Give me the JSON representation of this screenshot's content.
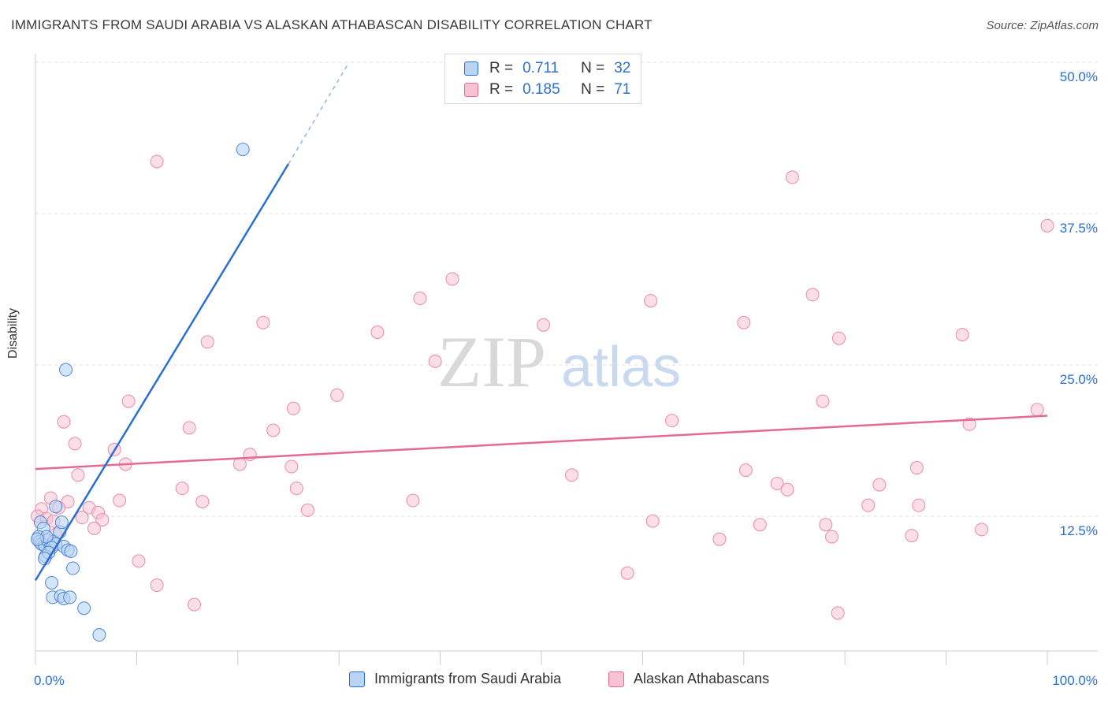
{
  "title": "IMMIGRANTS FROM SAUDI ARABIA VS ALASKAN ATHABASCAN DISABILITY CORRELATION CHART",
  "source": "Source: ZipAtlas.com",
  "watermark": {
    "zip": "ZIP",
    "atlas": "atlas"
  },
  "legend": {
    "r_label": "R =",
    "n_label": "N =",
    "rows": [
      {
        "r": "0.711",
        "n": "32"
      },
      {
        "r": "0.185",
        "n": "71"
      }
    ]
  },
  "bottom_legend": [
    "Immigrants from Saudi Arabia",
    "Alaskan Athabascans"
  ],
  "colors": {
    "blue": "#2b6fd0",
    "blue_fill": "#b9d3f3",
    "pink": "#e56a93",
    "pink_fill": "#f7c3d3",
    "grid": "#dddddd"
  },
  "chart_data": {
    "type": "scatter",
    "ylabel": "Disability",
    "xlim": [
      0,
      100
    ],
    "ylim": [
      0,
      50
    ],
    "x_tick_labels": [
      "0.0%",
      "100.0%"
    ],
    "y_ticks": [
      12.5,
      25.0,
      37.5,
      50.0
    ],
    "y_tick_labels": [
      "12.5%",
      "25.0%",
      "37.5%",
      "50.0%"
    ],
    "grid": true,
    "series": [
      {
        "name": "Immigrants from Saudi Arabia",
        "color": "#2b6fd0",
        "trend": {
          "x0": 0,
          "y0": 7.2,
          "x1": 25,
          "y1": 41.6,
          "dash_to_x": 31,
          "dash_to_y": 50
        },
        "points": [
          [
            20.5,
            42.8
          ],
          [
            3.0,
            24.6
          ],
          [
            0.5,
            12.0
          ],
          [
            0.8,
            11.5
          ],
          [
            0.3,
            10.8
          ],
          [
            0.4,
            10.4
          ],
          [
            0.6,
            10.2
          ],
          [
            0.9,
            10.1
          ],
          [
            1.2,
            10.5
          ],
          [
            1.5,
            10.0
          ],
          [
            1.8,
            10.4
          ],
          [
            2.0,
            10.2
          ],
          [
            2.4,
            11.2
          ],
          [
            2.6,
            12.0
          ],
          [
            1.1,
            10.8
          ],
          [
            1.6,
            9.9
          ],
          [
            2.8,
            10.0
          ],
          [
            3.2,
            9.7
          ],
          [
            3.5,
            9.6
          ],
          [
            2.0,
            13.3
          ],
          [
            1.0,
            9.2
          ],
          [
            1.3,
            9.5
          ],
          [
            0.9,
            9.0
          ],
          [
            3.7,
            8.2
          ],
          [
            1.6,
            7.0
          ],
          [
            1.7,
            5.8
          ],
          [
            2.5,
            5.9
          ],
          [
            2.8,
            5.7
          ],
          [
            3.4,
            5.8
          ],
          [
            4.8,
            4.9
          ],
          [
            6.3,
            2.7
          ],
          [
            0.2,
            10.6
          ]
        ]
      },
      {
        "name": "Alaskan Athabascans",
        "color": "#e56a93",
        "trend": {
          "x0": 0,
          "y0": 16.4,
          "x1": 100,
          "y1": 20.8
        },
        "points": [
          [
            12.0,
            41.8
          ],
          [
            74.8,
            40.5
          ],
          [
            100.0,
            36.5
          ],
          [
            41.2,
            32.1
          ],
          [
            38.0,
            30.5
          ],
          [
            76.8,
            30.8
          ],
          [
            60.8,
            30.3
          ],
          [
            22.5,
            28.5
          ],
          [
            33.8,
            27.7
          ],
          [
            50.2,
            28.3
          ],
          [
            70.0,
            28.5
          ],
          [
            79.4,
            27.2
          ],
          [
            91.6,
            27.5
          ],
          [
            17.0,
            26.9
          ],
          [
            39.5,
            25.3
          ],
          [
            2.8,
            20.3
          ],
          [
            9.2,
            22.0
          ],
          [
            25.5,
            21.4
          ],
          [
            29.8,
            22.5
          ],
          [
            77.8,
            22.0
          ],
          [
            99.0,
            21.3
          ],
          [
            62.9,
            20.4
          ],
          [
            92.3,
            20.1
          ],
          [
            15.2,
            19.8
          ],
          [
            23.5,
            19.6
          ],
          [
            3.9,
            18.5
          ],
          [
            7.8,
            18.0
          ],
          [
            21.2,
            17.6
          ],
          [
            8.9,
            16.8
          ],
          [
            20.2,
            16.8
          ],
          [
            25.3,
            16.6
          ],
          [
            87.1,
            16.5
          ],
          [
            70.2,
            16.3
          ],
          [
            4.2,
            15.9
          ],
          [
            53.0,
            15.9
          ],
          [
            14.5,
            14.8
          ],
          [
            25.8,
            14.8
          ],
          [
            73.3,
            15.2
          ],
          [
            74.3,
            14.7
          ],
          [
            83.4,
            15.1
          ],
          [
            1.5,
            14.0
          ],
          [
            3.2,
            13.7
          ],
          [
            8.3,
            13.8
          ],
          [
            16.5,
            13.7
          ],
          [
            37.3,
            13.8
          ],
          [
            0.6,
            13.1
          ],
          [
            2.3,
            13.2
          ],
          [
            5.3,
            13.2
          ],
          [
            6.2,
            12.8
          ],
          [
            26.9,
            13.0
          ],
          [
            82.3,
            13.4
          ],
          [
            87.3,
            13.4
          ],
          [
            0.2,
            12.5
          ],
          [
            1.1,
            12.3
          ],
          [
            4.6,
            12.4
          ],
          [
            6.6,
            12.2
          ],
          [
            1.8,
            12.1
          ],
          [
            5.8,
            11.5
          ],
          [
            61.0,
            12.1
          ],
          [
            78.1,
            11.8
          ],
          [
            93.5,
            11.4
          ],
          [
            71.6,
            11.8
          ],
          [
            67.6,
            10.6
          ],
          [
            78.7,
            10.8
          ],
          [
            86.6,
            10.9
          ],
          [
            10.2,
            8.8
          ],
          [
            58.5,
            7.8
          ],
          [
            12.0,
            6.8
          ],
          [
            15.7,
            5.2
          ],
          [
            79.3,
            4.5
          ],
          [
            2.0,
            11.0
          ]
        ]
      }
    ]
  }
}
